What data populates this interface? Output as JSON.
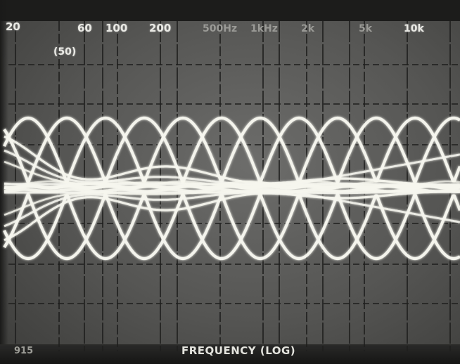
{
  "scope": {
    "tick_labels": [
      "20",
      "60",
      "100",
      "200",
      "500Hz",
      "1kHz",
      "2k",
      "5k",
      "10k"
    ],
    "sub_label": "(50)",
    "x_axis_title": "FREQUENCY (LOG)",
    "corner_label": "915"
  },
  "colors": {
    "screen": "#5e5e5c",
    "grid": "#1e1e1d",
    "trace": "#f6f6ee"
  }
}
